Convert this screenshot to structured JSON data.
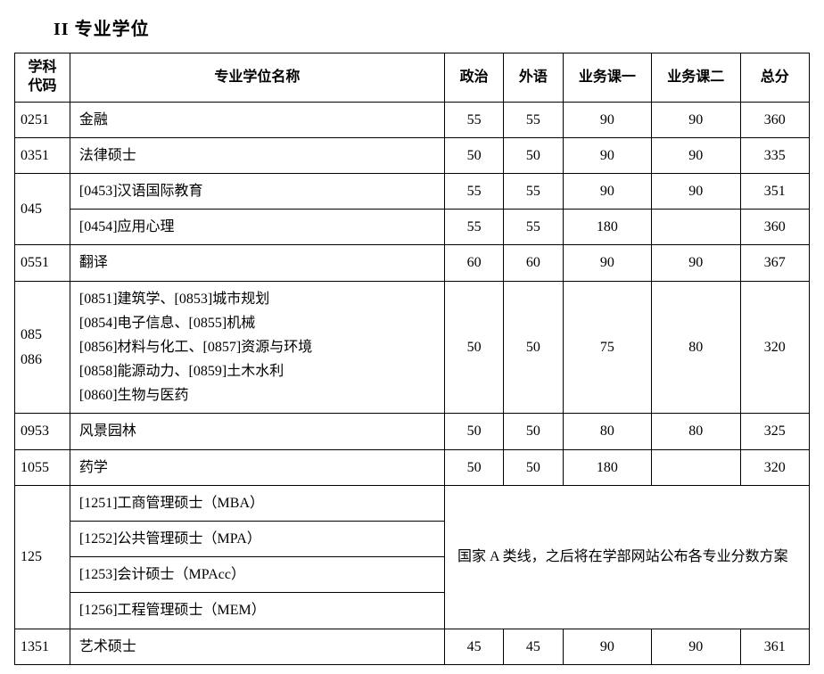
{
  "title": "II 专业学位",
  "headers": {
    "code": "学科\n代码",
    "name": "专业学位名称",
    "politics": "政治",
    "foreign": "外语",
    "subject1": "业务课一",
    "subject2": "业务课二",
    "total": "总分"
  },
  "rows": {
    "r1": {
      "code": "0251",
      "name": "金融",
      "pol": "55",
      "for": "55",
      "s1": "90",
      "s2": "90",
      "tot": "360"
    },
    "r2": {
      "code": "0351",
      "name": "法律硕士",
      "pol": "50",
      "for": "50",
      "s1": "90",
      "s2": "90",
      "tot": "335"
    },
    "r3": {
      "code": "045",
      "name_a": "[0453]汉语国际教育",
      "pol_a": "55",
      "for_a": "55",
      "s1_a": "90",
      "s2_a": "90",
      "tot_a": "351",
      "name_b": "[0454]应用心理",
      "pol_b": "55",
      "for_b": "55",
      "s1_b": "180",
      "s2_b": "",
      "tot_b": "360"
    },
    "r4": {
      "code": "0551",
      "name": "翻译",
      "pol": "60",
      "for": "60",
      "s1": "90",
      "s2": "90",
      "tot": "367"
    },
    "r5": {
      "code": "085\n086",
      "name": "[0851]建筑学、[0853]城市规划\n[0854]电子信息、[0855]机械\n[0856]材料与化工、[0857]资源与环境\n[0858]能源动力、[0859]土木水利\n[0860]生物与医药",
      "pol": "50",
      "for": "50",
      "s1": "75",
      "s2": "80",
      "tot": "320"
    },
    "r6": {
      "code": "0953",
      "name": "风景园林",
      "pol": "50",
      "for": "50",
      "s1": "80",
      "s2": "80",
      "tot": "325"
    },
    "r7": {
      "code": "1055",
      "name": "药学",
      "pol": "50",
      "for": "50",
      "s1": "180",
      "s2": "",
      "tot": "320"
    },
    "r8": {
      "code": "125",
      "name_a": "[1251]工商管理硕士（MBA）",
      "name_b": "[1252]公共管理硕士（MPA）",
      "name_c": "[1253]会计硕士（MPAcc）",
      "name_d": "[1256]工程管理硕士（MEM）",
      "note": "国家 A 类线，之后将在学部网站公布各专业分数方案"
    },
    "r9": {
      "code": "1351",
      "name": "艺术硕士",
      "pol": "45",
      "for": "45",
      "s1": "90",
      "s2": "90",
      "tot": "361"
    }
  }
}
